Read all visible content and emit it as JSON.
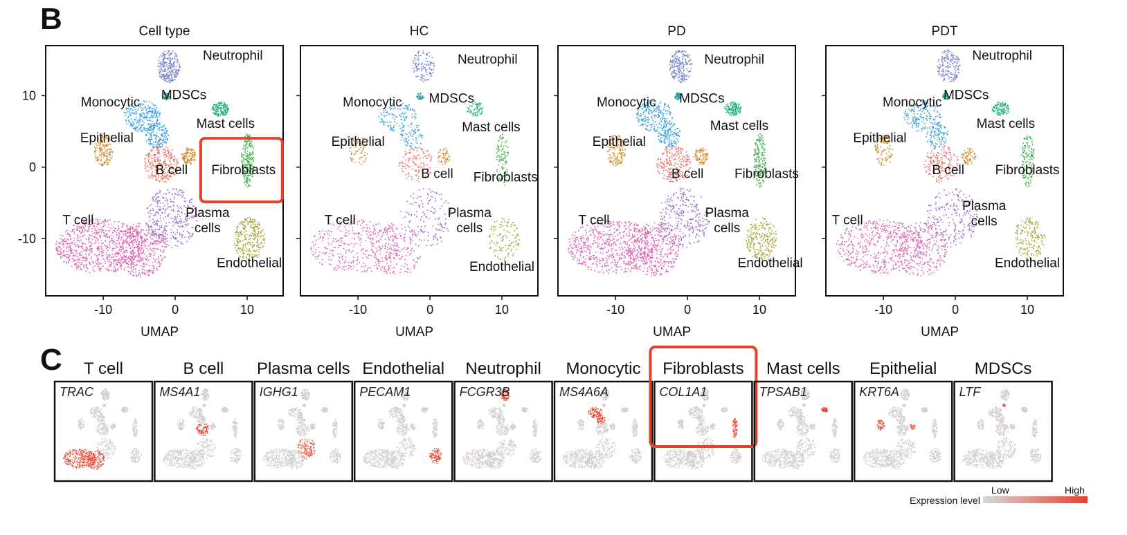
{
  "panel_b": {
    "letter": "B"
  },
  "panel_c": {
    "letter": "C"
  },
  "highlight_color": "#e8402a",
  "chart_data": [
    {
      "type": "scatter",
      "title": "Cell type",
      "xlabel": "UMAP",
      "xlim": [
        -18,
        15
      ],
      "ylim": [
        -18,
        17
      ],
      "xticks": [
        "-10",
        "0",
        "10"
      ],
      "yticks": [
        "10",
        "0",
        "-10"
      ],
      "highlight": "Fibroblasts",
      "clusters": [
        {
          "name": "Neutrophil",
          "color": "#7b83d1",
          "center": [
            -1,
            14
          ],
          "label_at": [
            8,
            15
          ]
        },
        {
          "name": "Monocytic",
          "color": "#35a0e0",
          "center": [
            -4.5,
            7
          ],
          "label_at": [
            -9,
            8.5
          ]
        },
        {
          "name": "MDSCs",
          "color": "#2aa39a",
          "center": [
            -1.5,
            10
          ],
          "label_at": [
            1.2,
            9.5
          ]
        },
        {
          "name": "Mast cells",
          "color": "#21b078",
          "center": [
            6,
            8
          ],
          "label_at": [
            7,
            5.5
          ]
        },
        {
          "name": "Epithelial",
          "color": "#d4892a",
          "center": [
            -10,
            2
          ],
          "label_at": [
            -9.5,
            3.5
          ]
        },
        {
          "name": "B cell",
          "color": "#ee6a60",
          "center": [
            -2,
            0
          ],
          "label_at": [
            -0.5,
            -1
          ]
        },
        {
          "name": "Fibroblasts",
          "color": "#3cb34a",
          "center": [
            10,
            0
          ],
          "label_at": [
            9.5,
            -1
          ]
        },
        {
          "name": "Plasma cells",
          "color": "#9a66c8",
          "center": [
            -1,
            -7
          ],
          "label_at": [
            4.5,
            -7
          ]
        },
        {
          "name": "T cell",
          "color": "#de5fb4",
          "center": [
            -11,
            -11
          ],
          "label_at": [
            -13.5,
            -8
          ]
        },
        {
          "name": "Endothelial",
          "color": "#9ea22a",
          "center": [
            10,
            -10
          ],
          "label_at": [
            10.3,
            -14
          ]
        }
      ]
    },
    {
      "type": "scatter",
      "title": "HC",
      "xlabel": "UMAP",
      "xlim": [
        -18,
        15
      ],
      "ylim": [
        -18,
        17
      ],
      "xticks": [
        "-10",
        "0",
        "10"
      ],
      "clusters": [
        {
          "name": "Neutrophil",
          "label_at": [
            8,
            14.5
          ]
        },
        {
          "name": "Monocytic",
          "label_at": [
            -8,
            8.5
          ]
        },
        {
          "name": "MDSCs",
          "label_at": [
            3,
            9
          ]
        },
        {
          "name": "Mast cells",
          "label_at": [
            8.5,
            5
          ]
        },
        {
          "name": "Epithelial",
          "label_at": [
            -10,
            3
          ]
        },
        {
          "name": "B cell",
          "label_at": [
            1,
            -1.5
          ]
        },
        {
          "name": "Fibroblasts",
          "label_at": [
            10.5,
            -2
          ]
        },
        {
          "name": "Plasma cells",
          "label_at": [
            5.5,
            -7
          ]
        },
        {
          "name": "T cell",
          "label_at": [
            -12.5,
            -8
          ]
        },
        {
          "name": "Endothelial",
          "label_at": [
            10,
            -14.5
          ]
        }
      ]
    },
    {
      "type": "scatter",
      "title": "PD",
      "xlabel": "UMAP",
      "xlim": [
        -18,
        15
      ],
      "ylim": [
        -18,
        17
      ],
      "xticks": [
        "-10",
        "0",
        "10"
      ],
      "clusters": [
        {
          "name": "Neutrophil",
          "label_at": [
            6.5,
            14.5
          ]
        },
        {
          "name": "Monocytic",
          "label_at": [
            -8.5,
            8.5
          ]
        },
        {
          "name": "MDSCs",
          "label_at": [
            2,
            9
          ]
        },
        {
          "name": "Mast cells",
          "label_at": [
            7.2,
            5.2
          ]
        },
        {
          "name": "Epithelial",
          "label_at": [
            -9.5,
            3
          ]
        },
        {
          "name": "B cell",
          "label_at": [
            0,
            -1.5
          ]
        },
        {
          "name": "Fibroblasts",
          "label_at": [
            11,
            -1.5
          ]
        },
        {
          "name": "Plasma cells",
          "label_at": [
            5.5,
            -7
          ]
        },
        {
          "name": "T cell",
          "label_at": [
            -13,
            -8
          ]
        },
        {
          "name": "Endothelial",
          "label_at": [
            11.5,
            -14
          ]
        }
      ]
    },
    {
      "type": "scatter",
      "title": "PDT",
      "xlabel": "UMAP",
      "xlim": [
        -18,
        15
      ],
      "ylim": [
        -18,
        17
      ],
      "xticks": [
        "-10",
        "0",
        "10"
      ],
      "clusters": [
        {
          "name": "Neutrophil",
          "label_at": [
            6.5,
            15
          ]
        },
        {
          "name": "MDSCs",
          "label_at": [
            1.5,
            9.5
          ]
        },
        {
          "name": "Monocytic",
          "label_at": [
            -6,
            8.5
          ]
        },
        {
          "name": "Mast cells",
          "label_at": [
            7,
            5.5
          ]
        },
        {
          "name": "Epithelial",
          "label_at": [
            -10.5,
            3.5
          ]
        },
        {
          "name": "B cell",
          "label_at": [
            -1,
            -1
          ]
        },
        {
          "name": "Fibroblasts",
          "label_at": [
            10,
            -1
          ]
        },
        {
          "name": "Plasma cells",
          "label_at": [
            4,
            -6
          ]
        },
        {
          "name": "T cell",
          "label_at": [
            -15,
            -8
          ]
        },
        {
          "name": "Endothelial",
          "label_at": [
            10,
            -14
          ]
        }
      ]
    }
  ],
  "feature_plots": [
    {
      "cell_type": "T cell",
      "gene": "TRAC"
    },
    {
      "cell_type": "B cell",
      "gene": "MS4A1"
    },
    {
      "cell_type": "Plasma cells",
      "gene": "IGHG1"
    },
    {
      "cell_type": "Endothelial",
      "gene": "PECAM1"
    },
    {
      "cell_type": "Neutrophil",
      "gene": "FCGR3B"
    },
    {
      "cell_type": "Monocytic",
      "gene": "MS4A6A"
    },
    {
      "cell_type": "Fibroblasts",
      "gene": "COL1A1",
      "highlight": true
    },
    {
      "cell_type": "Mast cells",
      "gene": "TPSAB1"
    },
    {
      "cell_type": "Epithelial",
      "gene": "KRT6A"
    },
    {
      "cell_type": "MDSCs",
      "gene": "LTF"
    }
  ],
  "legend": {
    "title": "Expression level",
    "low_label": "Low",
    "high_label": "High",
    "low_color": "#d8d8d8",
    "high_color": "#e8402a"
  }
}
